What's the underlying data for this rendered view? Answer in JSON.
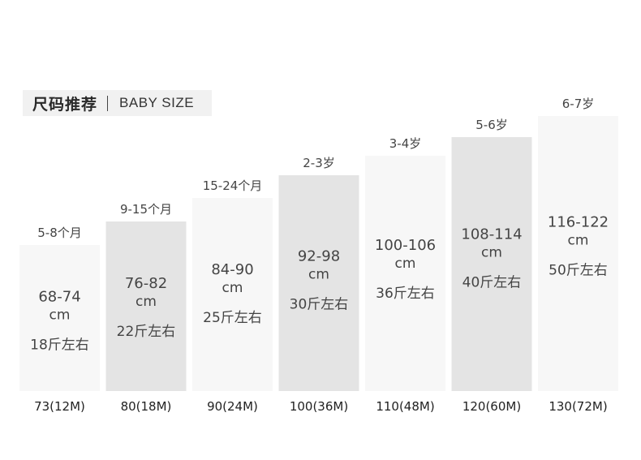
{
  "header": {
    "title": "尺码推荐",
    "subtitle": "BABY SIZE"
  },
  "colors": {
    "light_bar": "#f7f7f7",
    "dark_bar": "#e4e4e4",
    "text": "#444444"
  },
  "chart_data": {
    "type": "bar",
    "title": "尺码推荐 | BABY SIZE",
    "categories": [
      "73(12M)",
      "80(18M)",
      "90(24M)",
      "100(36M)",
      "110(48M)",
      "120(60M)",
      "130(72M)"
    ],
    "values": [
      180,
      209,
      238,
      266,
      290,
      313,
      339
    ],
    "ylim": [
      0,
      380
    ],
    "age_labels": [
      "5-8个月",
      "9-15个月",
      "15-24个月",
      "2-3岁",
      "3-4岁",
      "5-6岁",
      "6-7岁"
    ],
    "height_labels": [
      "68-74",
      "76-82",
      "84-90",
      "92-98",
      "100-106",
      "108-114",
      "116-122"
    ],
    "unit_label": "cm",
    "weight_labels": [
      "18斤左右",
      "22斤左右",
      "25斤左右",
      "30斤左右",
      "36斤左右",
      "40斤左右",
      "50斤左右"
    ],
    "bar_shades": [
      "light",
      "dark",
      "light",
      "dark",
      "light",
      "dark",
      "light"
    ],
    "grid": false,
    "legend": "none"
  }
}
